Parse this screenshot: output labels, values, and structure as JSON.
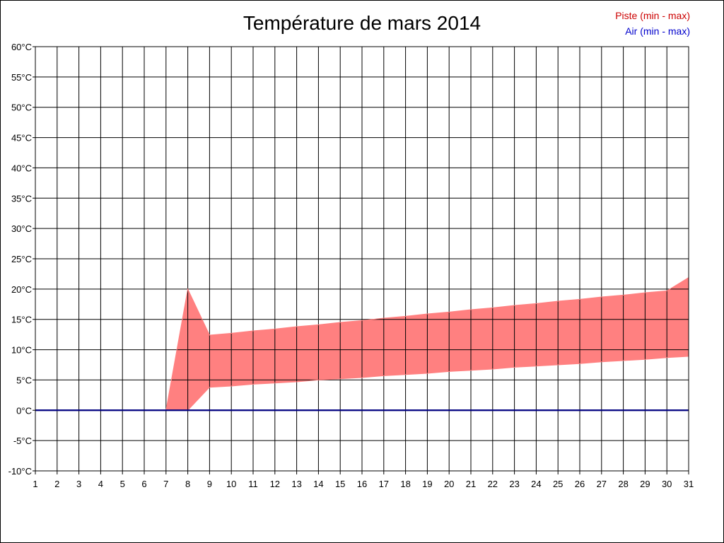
{
  "chart_data": {
    "type": "area",
    "title": "Température de mars 2014",
    "xlabel": "",
    "ylabel": "",
    "x": [
      1,
      2,
      3,
      4,
      5,
      6,
      7,
      8,
      9,
      10,
      11,
      12,
      13,
      14,
      15,
      16,
      17,
      18,
      19,
      20,
      21,
      22,
      23,
      24,
      25,
      26,
      27,
      28,
      29,
      30,
      31
    ],
    "xlim": [
      1,
      31
    ],
    "ylim": [
      -10,
      60
    ],
    "ytick_step": 5,
    "ytick_labels": [
      "-10°C",
      "-5°C",
      "0°C",
      "5°C",
      "10°C",
      "15°C",
      "20°C",
      "25°C",
      "30°C",
      "35°C",
      "40°C",
      "45°C",
      "50°C",
      "55°C",
      "60°C"
    ],
    "xtick_labels": [
      "1",
      "2",
      "3",
      "4",
      "5",
      "6",
      "7",
      "8",
      "9",
      "10",
      "11",
      "12",
      "13",
      "14",
      "15",
      "16",
      "17",
      "18",
      "19",
      "20",
      "21",
      "22",
      "23",
      "24",
      "25",
      "26",
      "27",
      "28",
      "29",
      "30",
      "31"
    ],
    "grid": true,
    "legend_position": "top-right",
    "series": [
      {
        "name": "Piste (min - max)",
        "color": "#cc0000",
        "fill_color": "#ff8080",
        "min": [
          0,
          0,
          0,
          0,
          0,
          0,
          0,
          0,
          3.8,
          4.0,
          4.3,
          4.5,
          4.7,
          5.0,
          5.2,
          5.4,
          5.7,
          5.9,
          6.1,
          6.4,
          6.6,
          6.8,
          7.1,
          7.3,
          7.5,
          7.7,
          8.0,
          8.2,
          8.4,
          8.7,
          8.9
        ],
        "max": [
          0,
          0,
          0,
          0,
          0,
          0,
          0,
          20,
          12.4,
          12.7,
          13.1,
          13.4,
          13.8,
          14.1,
          14.5,
          14.8,
          15.2,
          15.5,
          15.9,
          16.2,
          16.6,
          16.9,
          17.3,
          17.6,
          18.0,
          18.3,
          18.7,
          19.0,
          19.4,
          19.7,
          21.9
        ]
      },
      {
        "name": "Air (min - max)",
        "color": "#0000cc",
        "fill_color": "#000080",
        "min": [
          0,
          0,
          0,
          0,
          0,
          0,
          0,
          0,
          0,
          0,
          0,
          0,
          0,
          0,
          0,
          0,
          0,
          0,
          0,
          0,
          0,
          0,
          0,
          0,
          0,
          0,
          0,
          0,
          0,
          0,
          0
        ],
        "max": [
          0,
          0,
          0,
          0,
          0,
          0,
          0,
          0,
          0,
          0,
          0,
          0,
          0,
          0,
          0,
          0,
          0,
          0,
          0,
          0,
          0,
          0,
          0,
          0,
          0,
          0,
          0,
          0,
          0,
          0,
          0
        ]
      }
    ]
  }
}
